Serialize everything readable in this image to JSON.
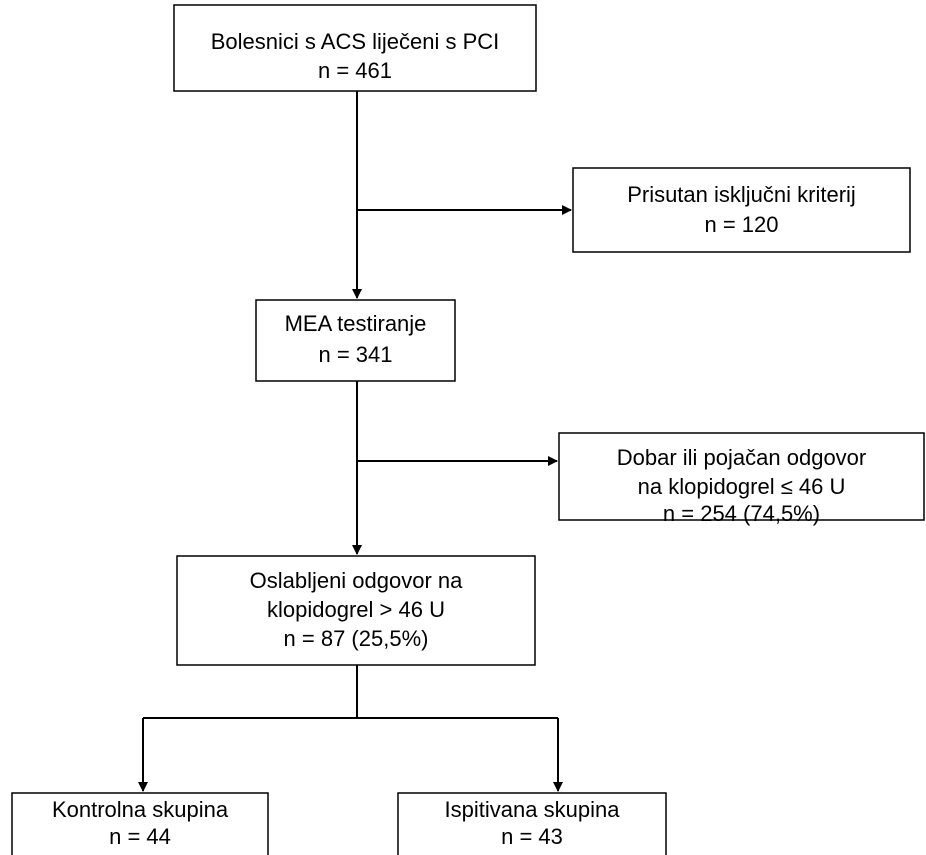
{
  "nodes": [
    {
      "lines": [
        "Bolesnici s ACS liječeni s PCI",
        "n = 461"
      ]
    },
    {
      "lines": [
        "Prisutan isključni kriterij",
        "n = 120"
      ]
    },
    {
      "lines": [
        "MEA testiranje",
        "n = 341"
      ]
    },
    {
      "lines": [
        "Dobar ili pojačan odgovor",
        "na klopidogrel ≤ 46 U",
        "n = 254 (74,5%)"
      ]
    },
    {
      "lines": [
        "Oslabljeni odgovor na",
        "klopidogrel > 46 U",
        "n = 87 (25,5%)"
      ]
    },
    {
      "lines": [
        "Kontrolna skupina",
        "n = 44"
      ]
    },
    {
      "lines": [
        "Ispitivana skupina",
        "n = 43"
      ]
    }
  ]
}
